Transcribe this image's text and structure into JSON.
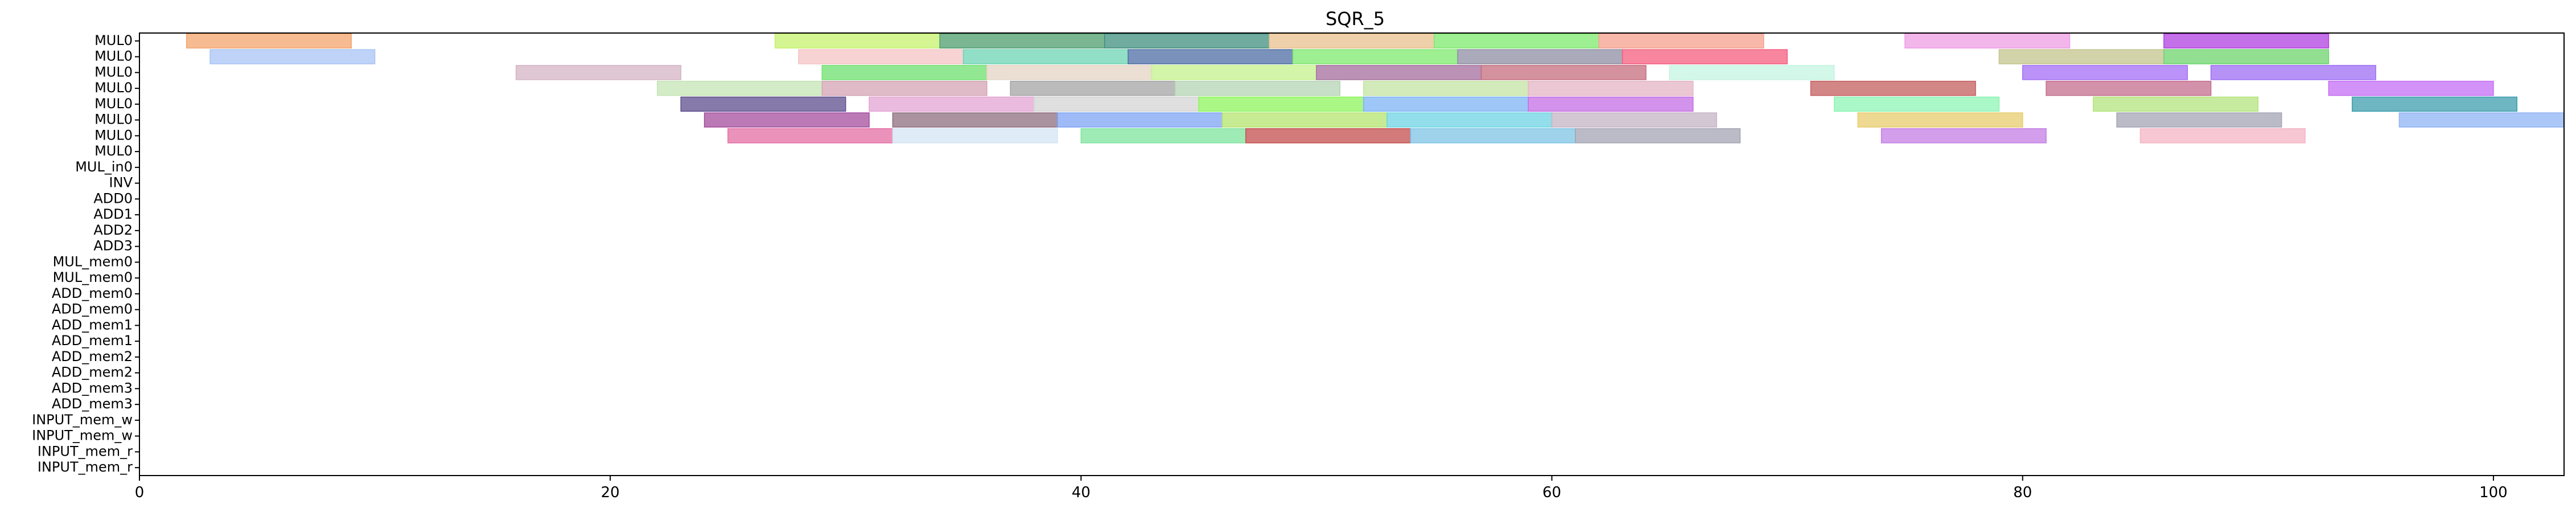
{
  "chart_data": {
    "type": "gantt",
    "title": "SQR_5",
    "xlabel": "",
    "ylabel": "",
    "xlim": [
      0,
      103
    ],
    "x_ticks": [
      0,
      20,
      40,
      60,
      80,
      100
    ],
    "grid": false,
    "legend": "none",
    "rows": [
      "MUL0",
      "MUL0",
      "MUL0",
      "MUL0",
      "MUL0",
      "MUL0",
      "MUL0",
      "MUL0",
      "MUL_in0",
      "INV",
      "ADD0",
      "ADD1",
      "ADD2",
      "ADD3",
      "MUL_mem0",
      "MUL_mem0",
      "ADD_mem0",
      "ADD_mem0",
      "ADD_mem1",
      "ADD_mem1",
      "ADD_mem2",
      "ADD_mem2",
      "ADD_mem3",
      "ADD_mem3",
      "INPUT_mem_w",
      "INPUT_mem_w",
      "INPUT_mem_r",
      "INPUT_mem_r"
    ],
    "tasks": [
      {
        "row": 0,
        "start": 2,
        "end": 9,
        "color": "#f4a46e"
      },
      {
        "row": 0,
        "start": 27,
        "end": 34,
        "color": "#c6f26e"
      },
      {
        "row": 0,
        "start": 34,
        "end": 41,
        "color": "#4f9e6e"
      },
      {
        "row": 0,
        "start": 41,
        "end": 48,
        "color": "#3f8f7e"
      },
      {
        "row": 0,
        "start": 48,
        "end": 55,
        "color": "#e8c08e"
      },
      {
        "row": 0,
        "start": 55,
        "end": 62,
        "color": "#7ee86e"
      },
      {
        "row": 0,
        "start": 62,
        "end": 69,
        "color": "#f4a08e"
      },
      {
        "row": 0,
        "start": 75,
        "end": 82,
        "color": "#ee9ee4"
      },
      {
        "row": 0,
        "start": 86,
        "end": 93,
        "color": "#b040e0"
      },
      {
        "row": 1,
        "start": 3,
        "end": 10,
        "color": "#a8c4f4"
      },
      {
        "row": 1,
        "start": 28,
        "end": 35,
        "color": "#f4c4c4"
      },
      {
        "row": 1,
        "start": 35,
        "end": 42,
        "color": "#6ed4b4"
      },
      {
        "row": 1,
        "start": 42,
        "end": 49,
        "color": "#4e6ea4"
      },
      {
        "row": 1,
        "start": 49,
        "end": 56,
        "color": "#7ee86e"
      },
      {
        "row": 1,
        "start": 56,
        "end": 63,
        "color": "#8e8ea4"
      },
      {
        "row": 1,
        "start": 63,
        "end": 70,
        "color": "#f45e7e"
      },
      {
        "row": 1,
        "start": 79,
        "end": 86,
        "color": "#c4c48e"
      },
      {
        "row": 1,
        "start": 86,
        "end": 93,
        "color": "#6ed46e"
      },
      {
        "row": 2,
        "start": 16,
        "end": 23,
        "color": "#d4b4c4"
      },
      {
        "row": 2,
        "start": 29,
        "end": 36,
        "color": "#6ee06e"
      },
      {
        "row": 2,
        "start": 36,
        "end": 43,
        "color": "#e4d4c4"
      },
      {
        "row": 2,
        "start": 43,
        "end": 50,
        "color": "#c4f28e"
      },
      {
        "row": 2,
        "start": 50,
        "end": 57,
        "color": "#a46e9e"
      },
      {
        "row": 2,
        "start": 57,
        "end": 64,
        "color": "#c46e7e"
      },
      {
        "row": 2,
        "start": 65,
        "end": 72,
        "color": "#c4f4e0"
      },
      {
        "row": 2,
        "start": 80,
        "end": 87,
        "color": "#a46ef4"
      },
      {
        "row": 2,
        "start": 88,
        "end": 95,
        "color": "#9e6ef4"
      },
      {
        "row": 3,
        "start": 22,
        "end": 29,
        "color": "#c4e4b4"
      },
      {
        "row": 3,
        "start": 29,
        "end": 36,
        "color": "#d4a4b4"
      },
      {
        "row": 3,
        "start": 37,
        "end": 44,
        "color": "#a4a4a4"
      },
      {
        "row": 3,
        "start": 44,
        "end": 51,
        "color": "#b4d4b4"
      },
      {
        "row": 3,
        "start": 52,
        "end": 59,
        "color": "#c4e4a4"
      },
      {
        "row": 3,
        "start": 59,
        "end": 66,
        "color": "#e4b4c4"
      },
      {
        "row": 3,
        "start": 71,
        "end": 78,
        "color": "#c45e5e"
      },
      {
        "row": 3,
        "start": 81,
        "end": 88,
        "color": "#c46e8e"
      },
      {
        "row": 3,
        "start": 93,
        "end": 100,
        "color": "#c46ef4"
      },
      {
        "row": 4,
        "start": 23,
        "end": 30,
        "color": "#5e4e8e"
      },
      {
        "row": 4,
        "start": 31,
        "end": 38,
        "color": "#e4a4d4"
      },
      {
        "row": 4,
        "start": 38,
        "end": 45,
        "color": "#d4d4d4"
      },
      {
        "row": 4,
        "start": 45,
        "end": 52,
        "color": "#8ef45e"
      },
      {
        "row": 4,
        "start": 52,
        "end": 59,
        "color": "#7eb4f4"
      },
      {
        "row": 4,
        "start": 59,
        "end": 66,
        "color": "#c46ee4"
      },
      {
        "row": 4,
        "start": 72,
        "end": 79,
        "color": "#8ef4b4"
      },
      {
        "row": 4,
        "start": 83,
        "end": 90,
        "color": "#b4e47e"
      },
      {
        "row": 4,
        "start": 94,
        "end": 101,
        "color": "#3e9eae"
      },
      {
        "row": 5,
        "start": 24,
        "end": 31,
        "color": "#a44e9e"
      },
      {
        "row": 5,
        "start": 32,
        "end": 39,
        "color": "#8e6e7e"
      },
      {
        "row": 5,
        "start": 39,
        "end": 46,
        "color": "#7ea4f4"
      },
      {
        "row": 5,
        "start": 46,
        "end": 53,
        "color": "#b4e46e"
      },
      {
        "row": 5,
        "start": 53,
        "end": 60,
        "color": "#6ed4e4"
      },
      {
        "row": 5,
        "start": 60,
        "end": 67,
        "color": "#c4b4c4"
      },
      {
        "row": 5,
        "start": 73,
        "end": 80,
        "color": "#e8cc6e"
      },
      {
        "row": 5,
        "start": 84,
        "end": 91,
        "color": "#a4a4b4"
      },
      {
        "row": 5,
        "start": 96,
        "end": 103,
        "color": "#8eb4f4"
      },
      {
        "row": 6,
        "start": 25,
        "end": 32,
        "color": "#e46ea4"
      },
      {
        "row": 6,
        "start": 32,
        "end": 39,
        "color": "#d4e4f4"
      },
      {
        "row": 6,
        "start": 40,
        "end": 47,
        "color": "#7ee49e"
      },
      {
        "row": 6,
        "start": 47,
        "end": 54,
        "color": "#c44e4e"
      },
      {
        "row": 6,
        "start": 54,
        "end": 61,
        "color": "#7ec4e4"
      },
      {
        "row": 6,
        "start": 61,
        "end": 68,
        "color": "#a4a4b4"
      },
      {
        "row": 6,
        "start": 74,
        "end": 81,
        "color": "#c47ee4"
      },
      {
        "row": 6,
        "start": 85,
        "end": 92,
        "color": "#f4b4c4"
      }
    ]
  }
}
